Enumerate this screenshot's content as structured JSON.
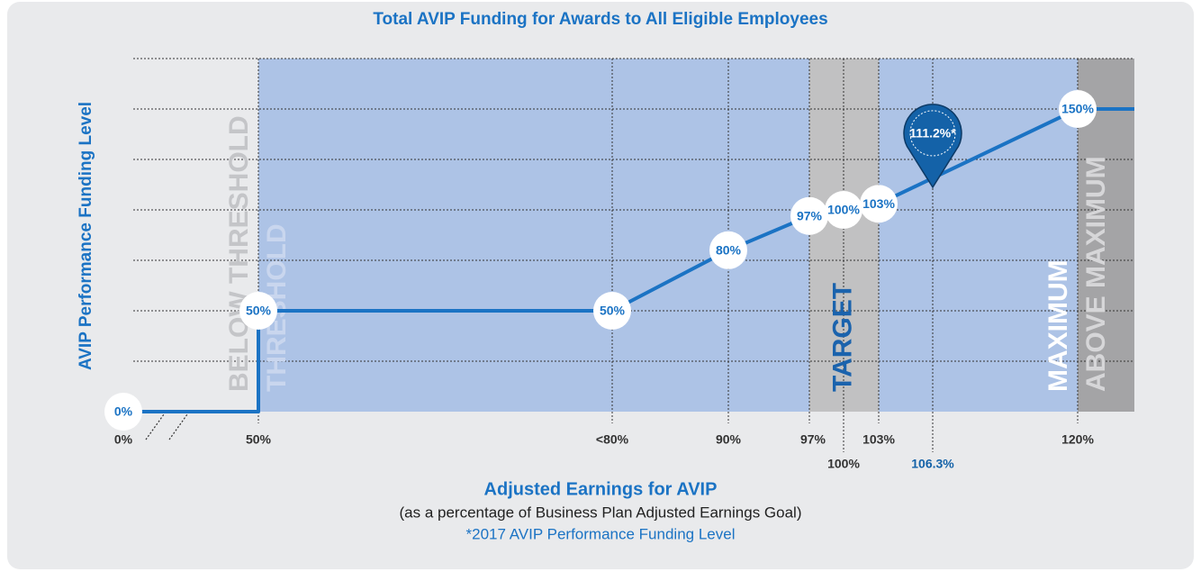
{
  "chart_data": {
    "type": "line",
    "title": "Total AVIP Funding for Awards to All Eligible Employees",
    "ylabel": "AVIP Performance Funding Level",
    "xlabel": "Adjusted Earnings for AVIP",
    "subtitle": "(as a percentage of Business Plan Adjusted Earnings Goal)",
    "footnote": "*2017 AVIP Performance Funding Level",
    "ylim": [
      0,
      175
    ],
    "yticks": [
      25,
      50,
      75,
      100,
      125,
      150,
      175
    ],
    "grid": true,
    "xticks": [
      {
        "value": 0,
        "label": "0%"
      },
      {
        "value": 50,
        "label": "50%"
      },
      {
        "value": 80,
        "label": "<80%"
      },
      {
        "value": 90,
        "label": "90%"
      },
      {
        "value": 97,
        "label": "97%"
      },
      {
        "value": 100,
        "label": "100%"
      },
      {
        "value": 103,
        "label": "103%"
      },
      {
        "value": 106.3,
        "label": "106.3%"
      },
      {
        "value": 120,
        "label": "120%"
      }
    ],
    "bands": [
      {
        "name": "BELOW THRESHOLD",
        "from": 0,
        "to": 50,
        "text_color": "#c4c5c8"
      },
      {
        "name": "THRESHOLD",
        "from": 50,
        "to": 97,
        "color": "#adc3e6",
        "text_color": "#c9d6ee"
      },
      {
        "name": "TARGET",
        "from": 97,
        "to": 103,
        "color": "#c1c1c2",
        "text_color": "#1b63ad"
      },
      {
        "name": "MAXIMUM",
        "from": 103,
        "to": 120,
        "color": "#adc3e6",
        "text_color": "#ffffff"
      },
      {
        "name": "ABOVE MAXIMUM",
        "from": 120,
        "color": "#a4a4a6",
        "text_color": "#d6d6d8"
      }
    ],
    "series": [
      {
        "color": "#1b73c4",
        "x": [
          0,
          50,
          50,
          80,
          90,
          97,
          100,
          103,
          120
        ],
        "values": [
          0,
          0,
          50,
          50,
          80,
          97,
          100,
          103,
          150
        ],
        "value_labels": [
          "0%",
          null,
          "50%",
          "50%",
          "80%",
          "97%",
          "100%",
          "103%",
          "150%"
        ]
      }
    ],
    "annotation": {
      "x": 106.3,
      "value": 111.2,
      "label": "111.2%*",
      "color": "#1462a8"
    }
  }
}
